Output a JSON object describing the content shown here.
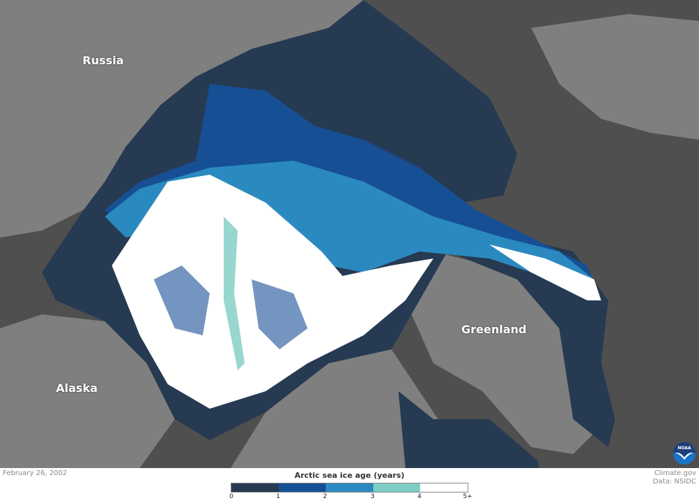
{
  "map": {
    "place_labels": [
      "Russia",
      "Alaska",
      "Greenland"
    ],
    "colors": {
      "land": "#7f7f7f",
      "land_dark": "#4f4f4f",
      "ocean": "#263a52"
    }
  },
  "footer": {
    "date": "February 26, 2002",
    "credit_line1": "Climate.gov",
    "credit_line2": "Data: NSIDC"
  },
  "legend": {
    "title": "Arctic sea ice age (years)",
    "ticks": [
      "0",
      "1",
      "2",
      "3",
      "4",
      "5+"
    ],
    "colors": [
      "#263a52",
      "#174f94",
      "#2a8abf",
      "#7ecdc4",
      "#ffffff"
    ]
  },
  "logo": {
    "text": "NOAA"
  }
}
